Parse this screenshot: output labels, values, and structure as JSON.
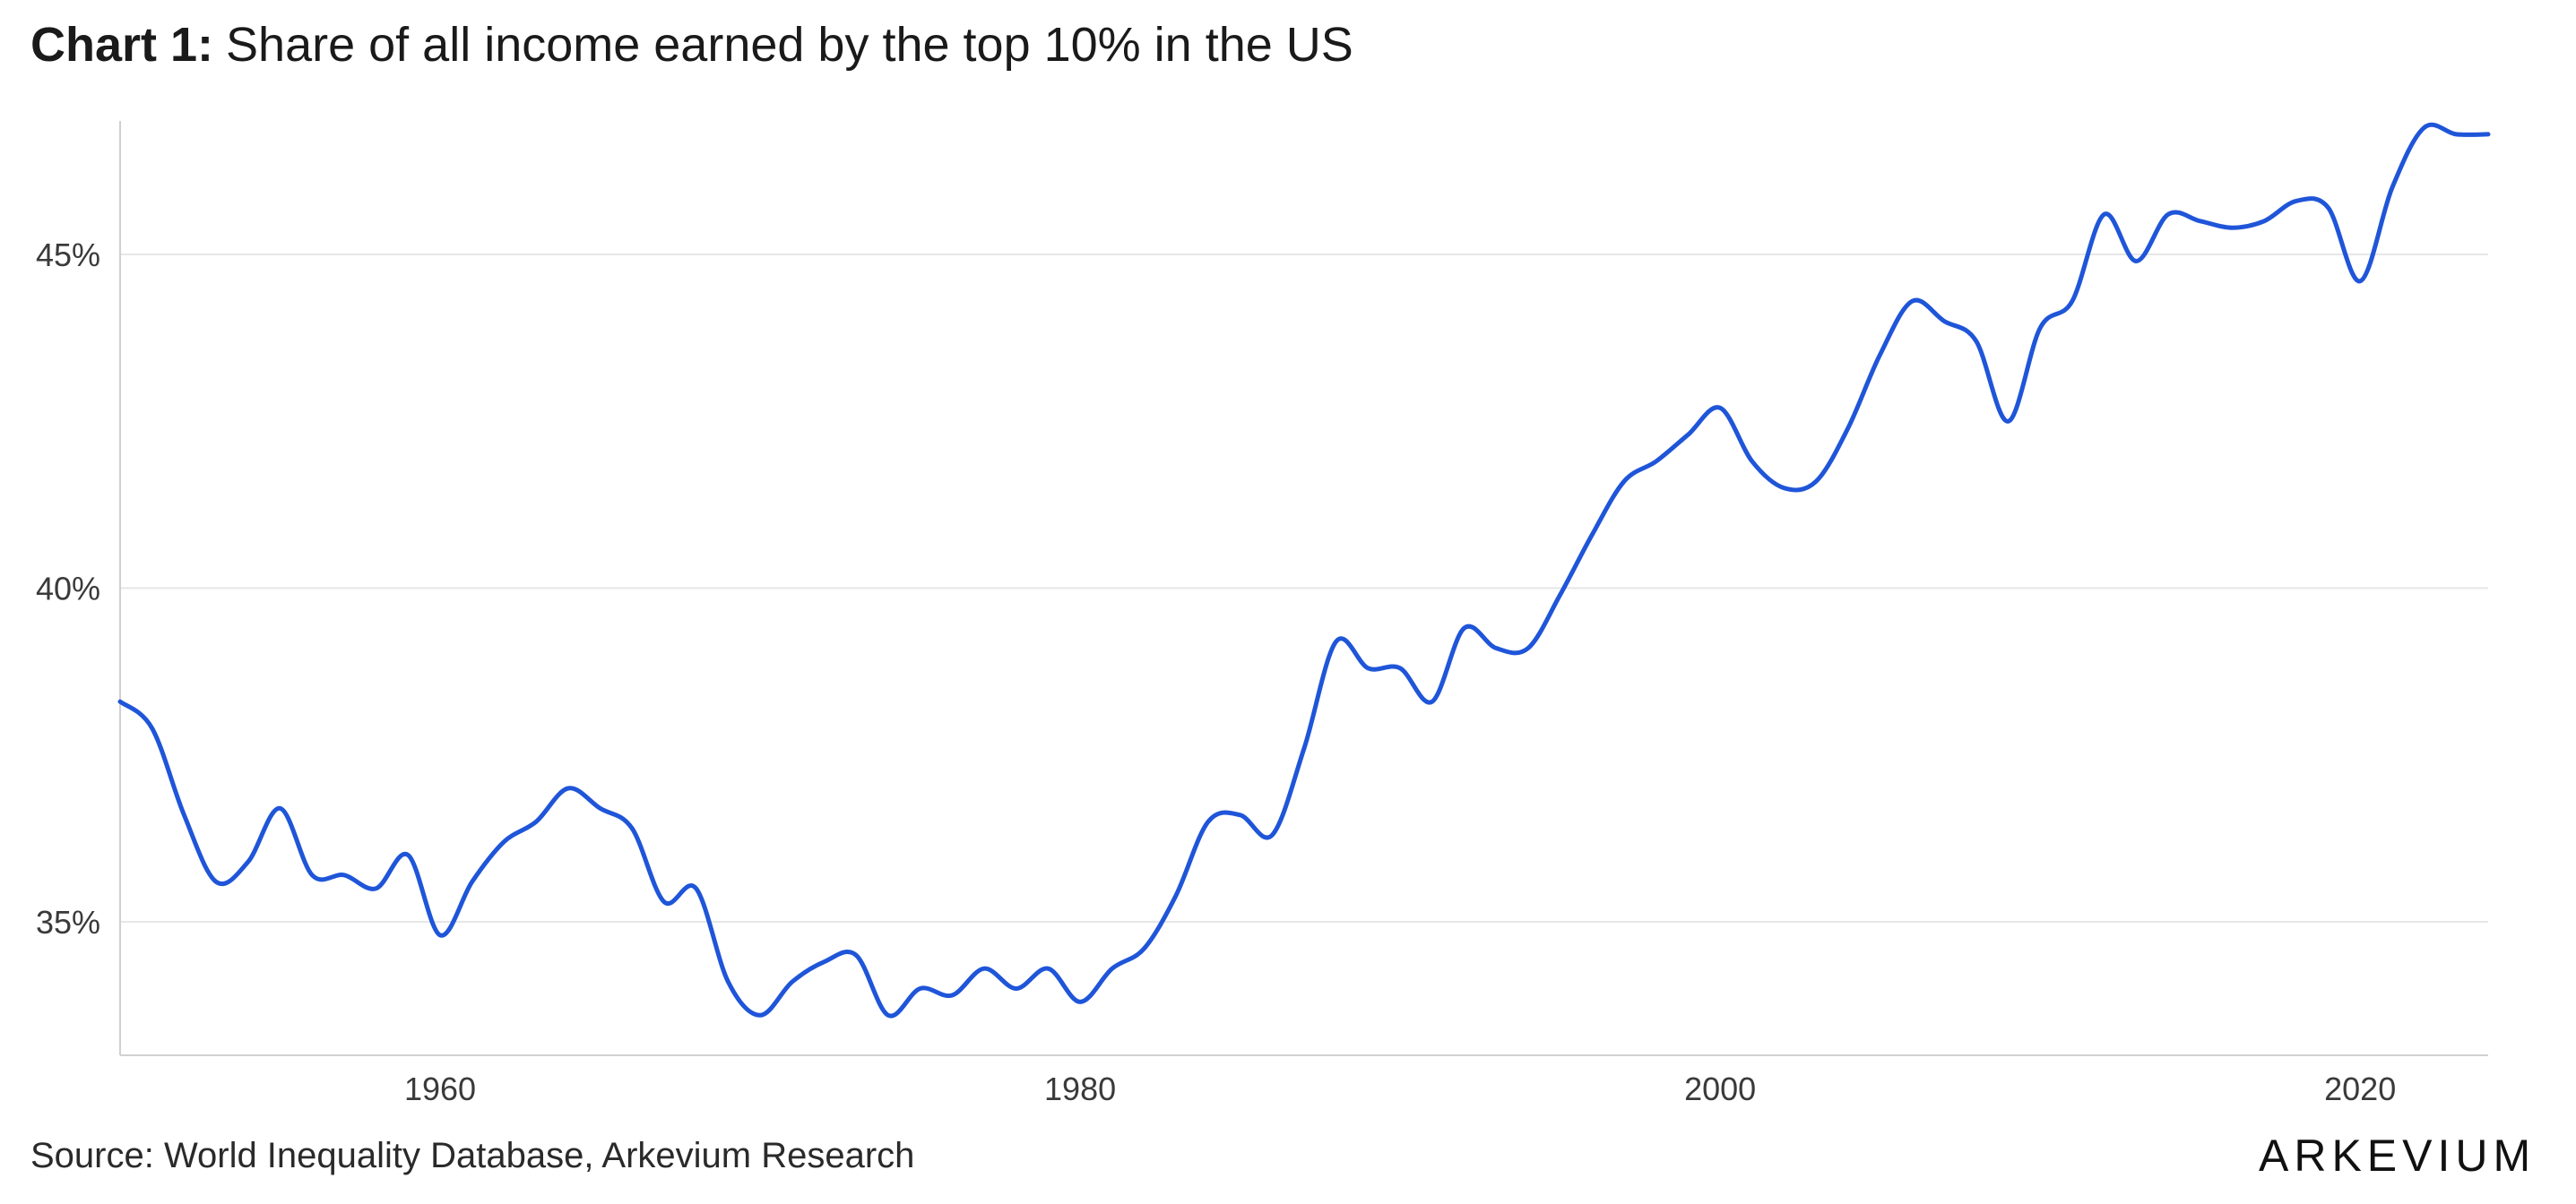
{
  "title": {
    "prefix": "Chart 1:",
    "text": "Share of all income earned by the top 10% in the US"
  },
  "source": "Source: World Inequality Database, Arkevium Research",
  "brand": "ARKEVIUM",
  "colors": {
    "line": "#1f55d8",
    "grid": "#e6e6e6",
    "axis": "#d0d0d0"
  },
  "chart_data": {
    "type": "line",
    "title": "Share of all income earned by the top 10% in the US",
    "xlabel": "",
    "ylabel": "",
    "xlim": [
      1950,
      2024
    ],
    "ylim": [
      33.0,
      47.0
    ],
    "grid": "horizontal",
    "x_ticks": [
      1960,
      1980,
      2000,
      2020
    ],
    "x_tick_labels": [
      "1960",
      "1980",
      "2000",
      "2020"
    ],
    "y_ticks": [
      35,
      40,
      45
    ],
    "y_tick_labels": [
      "35%",
      "40%",
      "45%"
    ],
    "series": [
      {
        "x": [
          1950,
          1951,
          1952,
          1953,
          1954,
          1955,
          1956,
          1957,
          1958,
          1959,
          1960,
          1961,
          1962,
          1963,
          1964,
          1965,
          1966,
          1967,
          1968,
          1969,
          1970,
          1971,
          1972,
          1973,
          1974,
          1975,
          1976,
          1977,
          1978,
          1979,
          1980,
          1981,
          1982,
          1983,
          1984,
          1985,
          1986,
          1987,
          1988,
          1989,
          1990,
          1991,
          1992,
          1993,
          1994,
          1995,
          1996,
          1997,
          1998,
          1999,
          2000,
          2001,
          2002,
          2003,
          2004,
          2005,
          2006,
          2007,
          2008,
          2009,
          2010,
          2011,
          2012,
          2013,
          2014,
          2015,
          2016,
          2017,
          2018,
          2019,
          2020,
          2021,
          2022,
          2023,
          2024
        ],
        "values": [
          38.3,
          37.9,
          36.6,
          35.6,
          35.9,
          36.7,
          35.7,
          35.7,
          35.5,
          36.0,
          34.8,
          35.6,
          36.2,
          36.5,
          37.0,
          36.7,
          36.4,
          35.3,
          35.5,
          34.1,
          33.6,
          34.1,
          34.4,
          34.5,
          33.6,
          34.0,
          33.9,
          34.3,
          34.0,
          34.3,
          33.8,
          34.3,
          34.6,
          35.4,
          36.5,
          36.6,
          36.3,
          37.6,
          39.2,
          38.8,
          38.8,
          38.3,
          39.4,
          39.1,
          39.1,
          39.9,
          40.8,
          41.6,
          41.9,
          42.3,
          42.7,
          41.9,
          41.5,
          41.6,
          42.4,
          43.5,
          44.3,
          44.0,
          43.7,
          42.5,
          43.9,
          44.3,
          45.6,
          44.9,
          45.6,
          45.5,
          45.4,
          45.5,
          45.8,
          45.7,
          44.6,
          46.0,
          46.9,
          46.8,
          46.8
        ]
      }
    ]
  }
}
